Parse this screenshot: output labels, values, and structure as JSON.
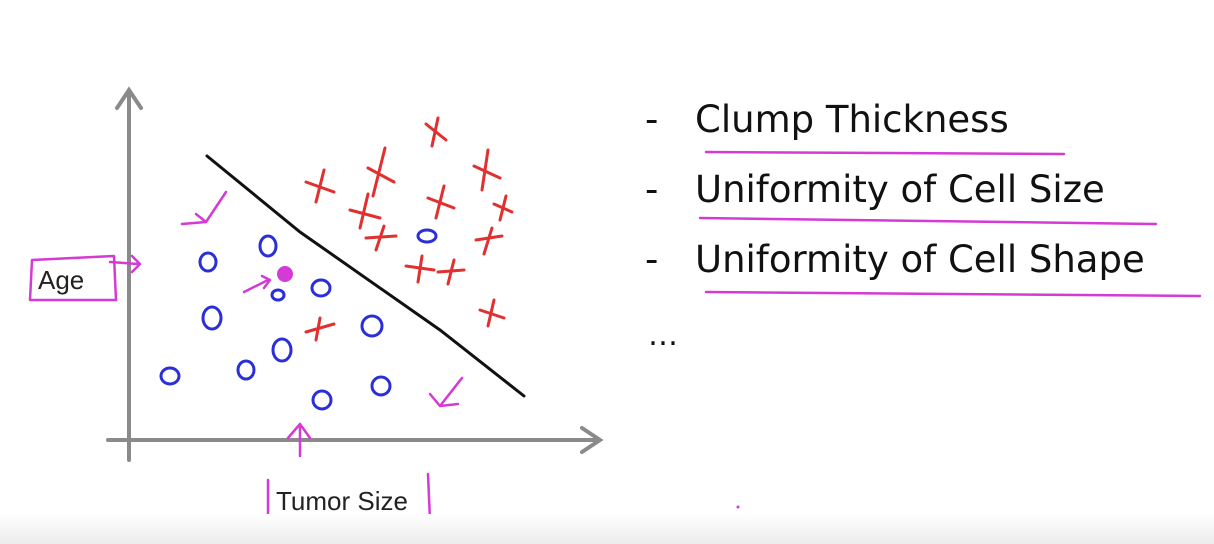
{
  "diagram": {
    "y_axis_label": "Age",
    "x_axis_label": "Tumor Size",
    "colors": {
      "axis": "#8a8a8a",
      "malignant_marker": "#e03030",
      "benign_marker": "#2a2fd8",
      "annotation": "#d43ad4",
      "boundary": "#111111"
    },
    "markers": {
      "malignant": "x",
      "benign": "o",
      "query_point": "filled-dot"
    }
  },
  "features": {
    "items": [
      "Clump Thickness",
      "Uniformity of Cell Size",
      "Uniformity of Cell Shape"
    ],
    "more": "…"
  }
}
